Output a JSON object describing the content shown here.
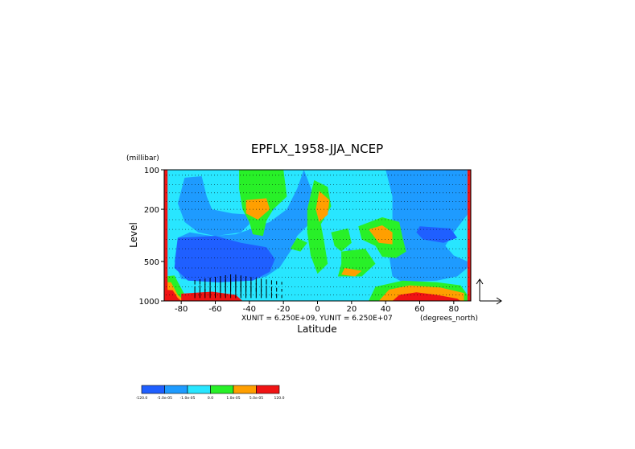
{
  "chart_data": {
    "type": "heatmap",
    "title": "EPFLX_1958-JJA_NCEP",
    "xlabel": "Latitude",
    "ylabel": "Level",
    "x_unit_label": "(degrees_north)",
    "y_unit_label": "(millibar)",
    "xlim": [
      -90,
      90
    ],
    "x_ticks": [
      {
        "v": -80,
        "label": "-80"
      },
      {
        "v": -60,
        "label": "-60"
      },
      {
        "v": -40,
        "label": "-40"
      },
      {
        "v": -20,
        "label": "-20"
      },
      {
        "v": 0,
        "label": "0"
      },
      {
        "v": 20,
        "label": "20"
      },
      {
        "v": 40,
        "label": "40"
      },
      {
        "v": 60,
        "label": "60"
      },
      {
        "v": 80,
        "label": "80"
      }
    ],
    "y_scale": "log",
    "ylim": [
      1000,
      100
    ],
    "y_ticks": [
      {
        "v": 100,
        "label": "100"
      },
      {
        "v": 200,
        "label": "200"
      },
      {
        "v": 500,
        "label": "500"
      },
      {
        "v": 1000,
        "label": "1000"
      }
    ],
    "vector_scale_text": "XUNIT = 6.250E+09, YUNIT = 6.250E+07",
    "levels": [
      {
        "bin": "-120.0 to -5.0e-05",
        "color": "#1f5fff"
      },
      {
        "bin": "-5.0e-05 to -1.0e-05",
        "color": "#1e9bff"
      },
      {
        "bin": "-1.0e-05 to 0.0",
        "color": "#28e6ff"
      },
      {
        "bin": "0.0 to 1.0e-05",
        "color": "#28f028"
      },
      {
        "bin": "1.0e-05 to 5.0e-05",
        "color": "#ff9f00"
      },
      {
        "bin": "5.0e-05 to 120.0",
        "color": "#f01414"
      }
    ],
    "colorbar_labels": [
      "-120.0",
      "-5.0e-05",
      "-1.0e-05",
      "0.0",
      "1.0e-05",
      "5.0e-05",
      "120.0"
    ],
    "regions": [
      {
        "level": 2,
        "pts": [
          [
            -90,
            100
          ],
          [
            90,
            100
          ],
          [
            90,
            1000
          ],
          [
            -90,
            1000
          ]
        ]
      },
      {
        "level": 1,
        "pts": [
          [
            -78,
            115
          ],
          [
            -68,
            112
          ],
          [
            -65,
            160
          ],
          [
            -62,
            200
          ],
          [
            -50,
            215
          ],
          [
            -40,
            220
          ],
          [
            -40,
            260
          ],
          [
            -45,
            300
          ],
          [
            -60,
            320
          ],
          [
            -70,
            300
          ],
          [
            -78,
            250
          ],
          [
            -82,
            180
          ]
        ]
      },
      {
        "level": 1,
        "pts": [
          [
            -42,
            100
          ],
          [
            -25,
            100
          ],
          [
            -22,
            150
          ],
          [
            -25,
            200
          ],
          [
            -32,
            230
          ],
          [
            -38,
            200
          ],
          [
            -42,
            150
          ]
        ]
      },
      {
        "level": 1,
        "pts": [
          [
            -8,
            100
          ],
          [
            -2,
            160
          ],
          [
            -5,
            260
          ],
          [
            -12,
            320
          ],
          [
            -15,
            400
          ],
          [
            -22,
            550
          ],
          [
            -30,
            650
          ],
          [
            -40,
            700
          ],
          [
            -60,
            720
          ],
          [
            -80,
            680
          ],
          [
            -84,
            500
          ],
          [
            -82,
            330
          ],
          [
            -75,
            300
          ],
          [
            -62,
            320
          ],
          [
            -48,
            310
          ],
          [
            -38,
            280
          ],
          [
            -28,
            250
          ],
          [
            -18,
            200
          ],
          [
            -12,
            140
          ]
        ]
      },
      {
        "level": 1,
        "pts": [
          [
            40,
            100
          ],
          [
            88,
            100
          ],
          [
            88,
            220
          ],
          [
            80,
            300
          ],
          [
            75,
            380
          ],
          [
            80,
            450
          ],
          [
            88,
            500
          ],
          [
            88,
            560
          ],
          [
            82,
            650
          ],
          [
            70,
            700
          ],
          [
            50,
            720
          ],
          [
            44,
            650
          ],
          [
            42,
            450
          ],
          [
            44,
            280
          ],
          [
            44,
            160
          ]
        ]
      },
      {
        "level": 1,
        "pts": [
          [
            18,
            400
          ],
          [
            25,
            430
          ],
          [
            28,
            520
          ],
          [
            22,
            560
          ],
          [
            16,
            480
          ]
        ]
      },
      {
        "level": 0,
        "pts": [
          [
            -82,
            330
          ],
          [
            -60,
            320
          ],
          [
            -45,
            360
          ],
          [
            -30,
            390
          ],
          [
            -25,
            480
          ],
          [
            -28,
            600
          ],
          [
            -38,
            700
          ],
          [
            -58,
            720
          ],
          [
            -76,
            700
          ],
          [
            -84,
            560
          ]
        ]
      },
      {
        "level": 0,
        "pts": [
          [
            60,
            270
          ],
          [
            78,
            280
          ],
          [
            82,
            330
          ],
          [
            74,
            360
          ],
          [
            62,
            340
          ],
          [
            58,
            300
          ]
        ]
      },
      {
        "level": 3,
        "pts": [
          [
            -46,
            100
          ],
          [
            -20,
            100
          ],
          [
            -18,
            160
          ],
          [
            -26,
            200
          ],
          [
            -30,
            245
          ],
          [
            -32,
            320
          ],
          [
            -38,
            310
          ],
          [
            -40,
            250
          ],
          [
            -44,
            200
          ],
          [
            -46,
            140
          ]
        ]
      },
      {
        "level": 3,
        "pts": [
          [
            -2,
            120
          ],
          [
            6,
            135
          ],
          [
            8,
            190
          ],
          [
            2,
            260
          ],
          [
            4,
            360
          ],
          [
            6,
            520
          ],
          [
            0,
            620
          ],
          [
            -4,
            450
          ],
          [
            -6,
            300
          ],
          [
            -6,
            200
          ]
        ]
      },
      {
        "level": 3,
        "pts": [
          [
            8,
            300
          ],
          [
            18,
            280
          ],
          [
            20,
            360
          ],
          [
            14,
            420
          ],
          [
            10,
            380
          ]
        ]
      },
      {
        "level": 3,
        "pts": [
          [
            14,
            420
          ],
          [
            28,
            400
          ],
          [
            34,
            520
          ],
          [
            26,
            650
          ],
          [
            12,
            650
          ],
          [
            14,
            520
          ]
        ]
      },
      {
        "level": 3,
        "pts": [
          [
            24,
            270
          ],
          [
            38,
            230
          ],
          [
            48,
            250
          ],
          [
            50,
            330
          ],
          [
            52,
            420
          ],
          [
            46,
            470
          ],
          [
            38,
            460
          ],
          [
            34,
            380
          ],
          [
            26,
            340
          ]
        ]
      },
      {
        "level": 3,
        "pts": [
          [
            34,
            780
          ],
          [
            50,
            700
          ],
          [
            70,
            720
          ],
          [
            84,
            760
          ],
          [
            88,
            900
          ],
          [
            88,
            1000
          ],
          [
            30,
            1000
          ]
        ]
      },
      {
        "level": 3,
        "pts": [
          [
            -90,
            650
          ],
          [
            -84,
            640
          ],
          [
            -80,
            800
          ],
          [
            -76,
            1000
          ],
          [
            -90,
            1000
          ]
        ]
      },
      {
        "level": 3,
        "pts": [
          [
            -12,
            330
          ],
          [
            -6,
            360
          ],
          [
            -10,
            420
          ],
          [
            -16,
            400
          ]
        ]
      },
      {
        "level": 4,
        "pts": [
          [
            -42,
            170
          ],
          [
            -30,
            165
          ],
          [
            -28,
            200
          ],
          [
            -35,
            240
          ],
          [
            -42,
            215
          ]
        ]
      },
      {
        "level": 4,
        "pts": [
          [
            1,
            145
          ],
          [
            7,
            170
          ],
          [
            6,
            220
          ],
          [
            1,
            250
          ],
          [
            -1,
            200
          ]
        ]
      },
      {
        "level": 4,
        "pts": [
          [
            30,
            285
          ],
          [
            38,
            265
          ],
          [
            44,
            300
          ],
          [
            44,
            370
          ],
          [
            36,
            360
          ]
        ]
      },
      {
        "level": 4,
        "pts": [
          [
            16,
            560
          ],
          [
            26,
            590
          ],
          [
            22,
            650
          ],
          [
            14,
            630
          ]
        ]
      },
      {
        "level": 4,
        "pts": [
          [
            42,
            820
          ],
          [
            54,
            760
          ],
          [
            72,
            790
          ],
          [
            86,
            870
          ],
          [
            86,
            1000
          ],
          [
            36,
            1000
          ]
        ]
      },
      {
        "level": 4,
        "pts": [
          [
            -90,
            720
          ],
          [
            -86,
            720
          ],
          [
            -82,
            900
          ],
          [
            -78,
            1000
          ],
          [
            -90,
            1000
          ]
        ]
      },
      {
        "level": 5,
        "pts": [
          [
            48,
            900
          ],
          [
            58,
            860
          ],
          [
            70,
            900
          ],
          [
            82,
            960
          ],
          [
            84,
            1000
          ],
          [
            44,
            1000
          ]
        ]
      },
      {
        "level": 5,
        "pts": [
          [
            -90,
            820
          ],
          [
            -85,
            830
          ],
          [
            -82,
            950
          ],
          [
            -80,
            1000
          ],
          [
            -90,
            1000
          ]
        ]
      },
      {
        "level": 5,
        "pts": [
          [
            -90,
            100
          ],
          [
            -88,
            100
          ],
          [
            -88,
            1000
          ],
          [
            -90,
            1000
          ]
        ]
      },
      {
        "level": 5,
        "pts": [
          [
            88,
            100
          ],
          [
            90,
            100
          ],
          [
            90,
            1000
          ],
          [
            88,
            1000
          ]
        ]
      },
      {
        "level": 5,
        "pts": [
          [
            -80,
            880
          ],
          [
            -62,
            850
          ],
          [
            -48,
            900
          ],
          [
            -44,
            1000
          ],
          [
            -80,
            1000
          ]
        ]
      }
    ]
  }
}
